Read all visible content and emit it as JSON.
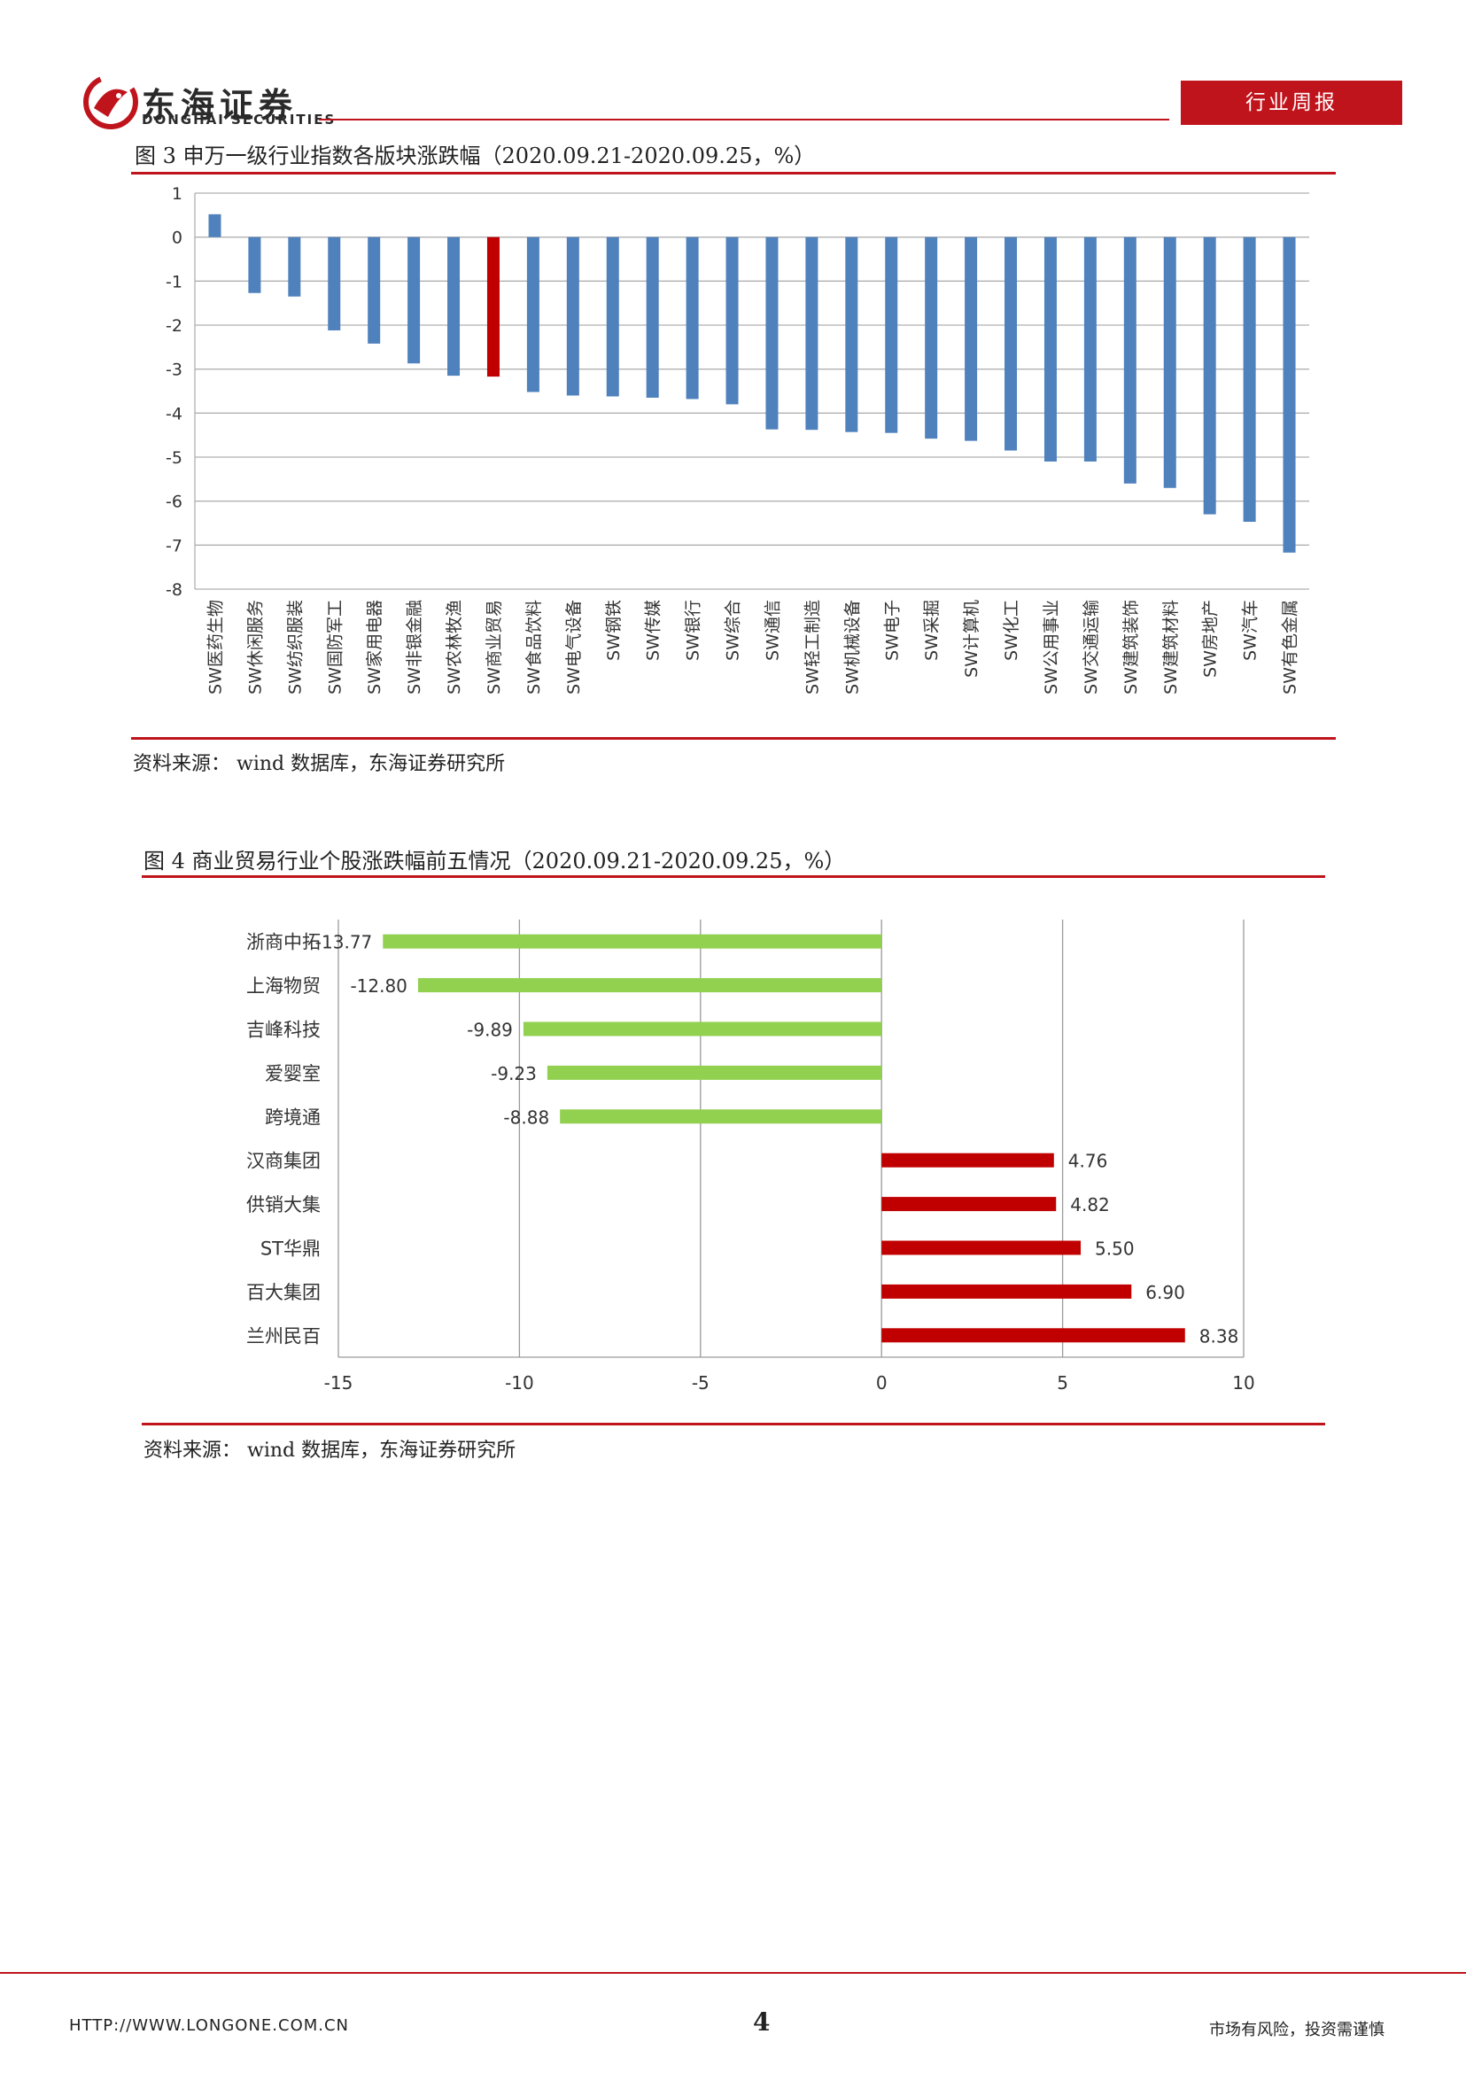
{
  "header": {
    "brand_cn": "东海证券",
    "brand_en": "DONGHAI SECURITIES",
    "report_type": "行业周报"
  },
  "figure3": {
    "title": "图 3 申万一级行业指数各版块涨跌幅（2020.09.21-2020.09.25，%）",
    "source": "资料来源： wind 数据库，东海证券研究所"
  },
  "figure4": {
    "title": "图 4 商业贸易行业个股涨跌幅前五情况（2020.09.21-2020.09.25，%）",
    "source": "资料来源： wind 数据库，东海证券研究所"
  },
  "chart_data": [
    {
      "type": "bar",
      "orientation": "vertical",
      "categories": [
        "SW医药生物",
        "SW休闲服务",
        "SW纺织服装",
        "SW国防军工",
        "SW家用电器",
        "SW非银金融",
        "SW农林牧渔",
        "SW商业贸易",
        "SW食品饮料",
        "SW电气设备",
        "SW钢铁",
        "SW传媒",
        "SW银行",
        "SW综合",
        "SW通信",
        "SW轻工制造",
        "SW机械设备",
        "SW电子",
        "SW采掘",
        "SW计算机",
        "SW化工",
        "SW公用事业",
        "SW交通运输",
        "SW建筑装饰",
        "SW建筑材料",
        "SW房地产",
        "SW汽车",
        "SW有色金属"
      ],
      "values": [
        0.52,
        -1.27,
        -1.35,
        -2.12,
        -2.42,
        -2.87,
        -3.15,
        -3.17,
        -3.52,
        -3.6,
        -3.62,
        -3.65,
        -3.68,
        -3.8,
        -4.37,
        -4.38,
        -4.43,
        -4.45,
        -4.58,
        -4.63,
        -4.85,
        -5.1,
        -5.1,
        -5.6,
        -5.7,
        -6.3,
        -6.47,
        -7.17
      ],
      "highlight_index": 7,
      "ylim": [
        -8,
        1
      ],
      "yticks": [
        1,
        0,
        -1,
        -2,
        -3,
        -4,
        -5,
        -6,
        -7,
        -8
      ],
      "grid": true,
      "colors": {
        "default": "#4f81bd",
        "highlight": "#c00000"
      }
    },
    {
      "type": "bar",
      "orientation": "horizontal",
      "categories": [
        "浙商中拓",
        "上海物贸",
        "吉峰科技",
        "爱婴室",
        "跨境通",
        "汉商集团",
        "供销大集",
        "ST华鼎",
        "百大集团",
        "兰州民百"
      ],
      "values": [
        -13.77,
        -12.8,
        -9.89,
        -9.23,
        -8.88,
        4.76,
        4.82,
        5.5,
        6.9,
        8.38
      ],
      "labels": [
        "-13.77",
        "-12.80",
        "-9.89",
        "-9.23",
        "-8.88",
        "4.76",
        "4.82",
        "5.50",
        "6.90",
        "8.38"
      ],
      "xlim": [
        -15,
        10
      ],
      "xticks": [
        -15,
        -10,
        -5,
        0,
        5,
        10
      ],
      "grid": true,
      "colors": {
        "negative": "#92d050",
        "positive": "#c00000"
      }
    }
  ],
  "footer": {
    "url": "HTTP://WWW.LONGONE.COM.CN",
    "page": "4",
    "disclaimer": "市场有风险，投资需谨慎"
  }
}
